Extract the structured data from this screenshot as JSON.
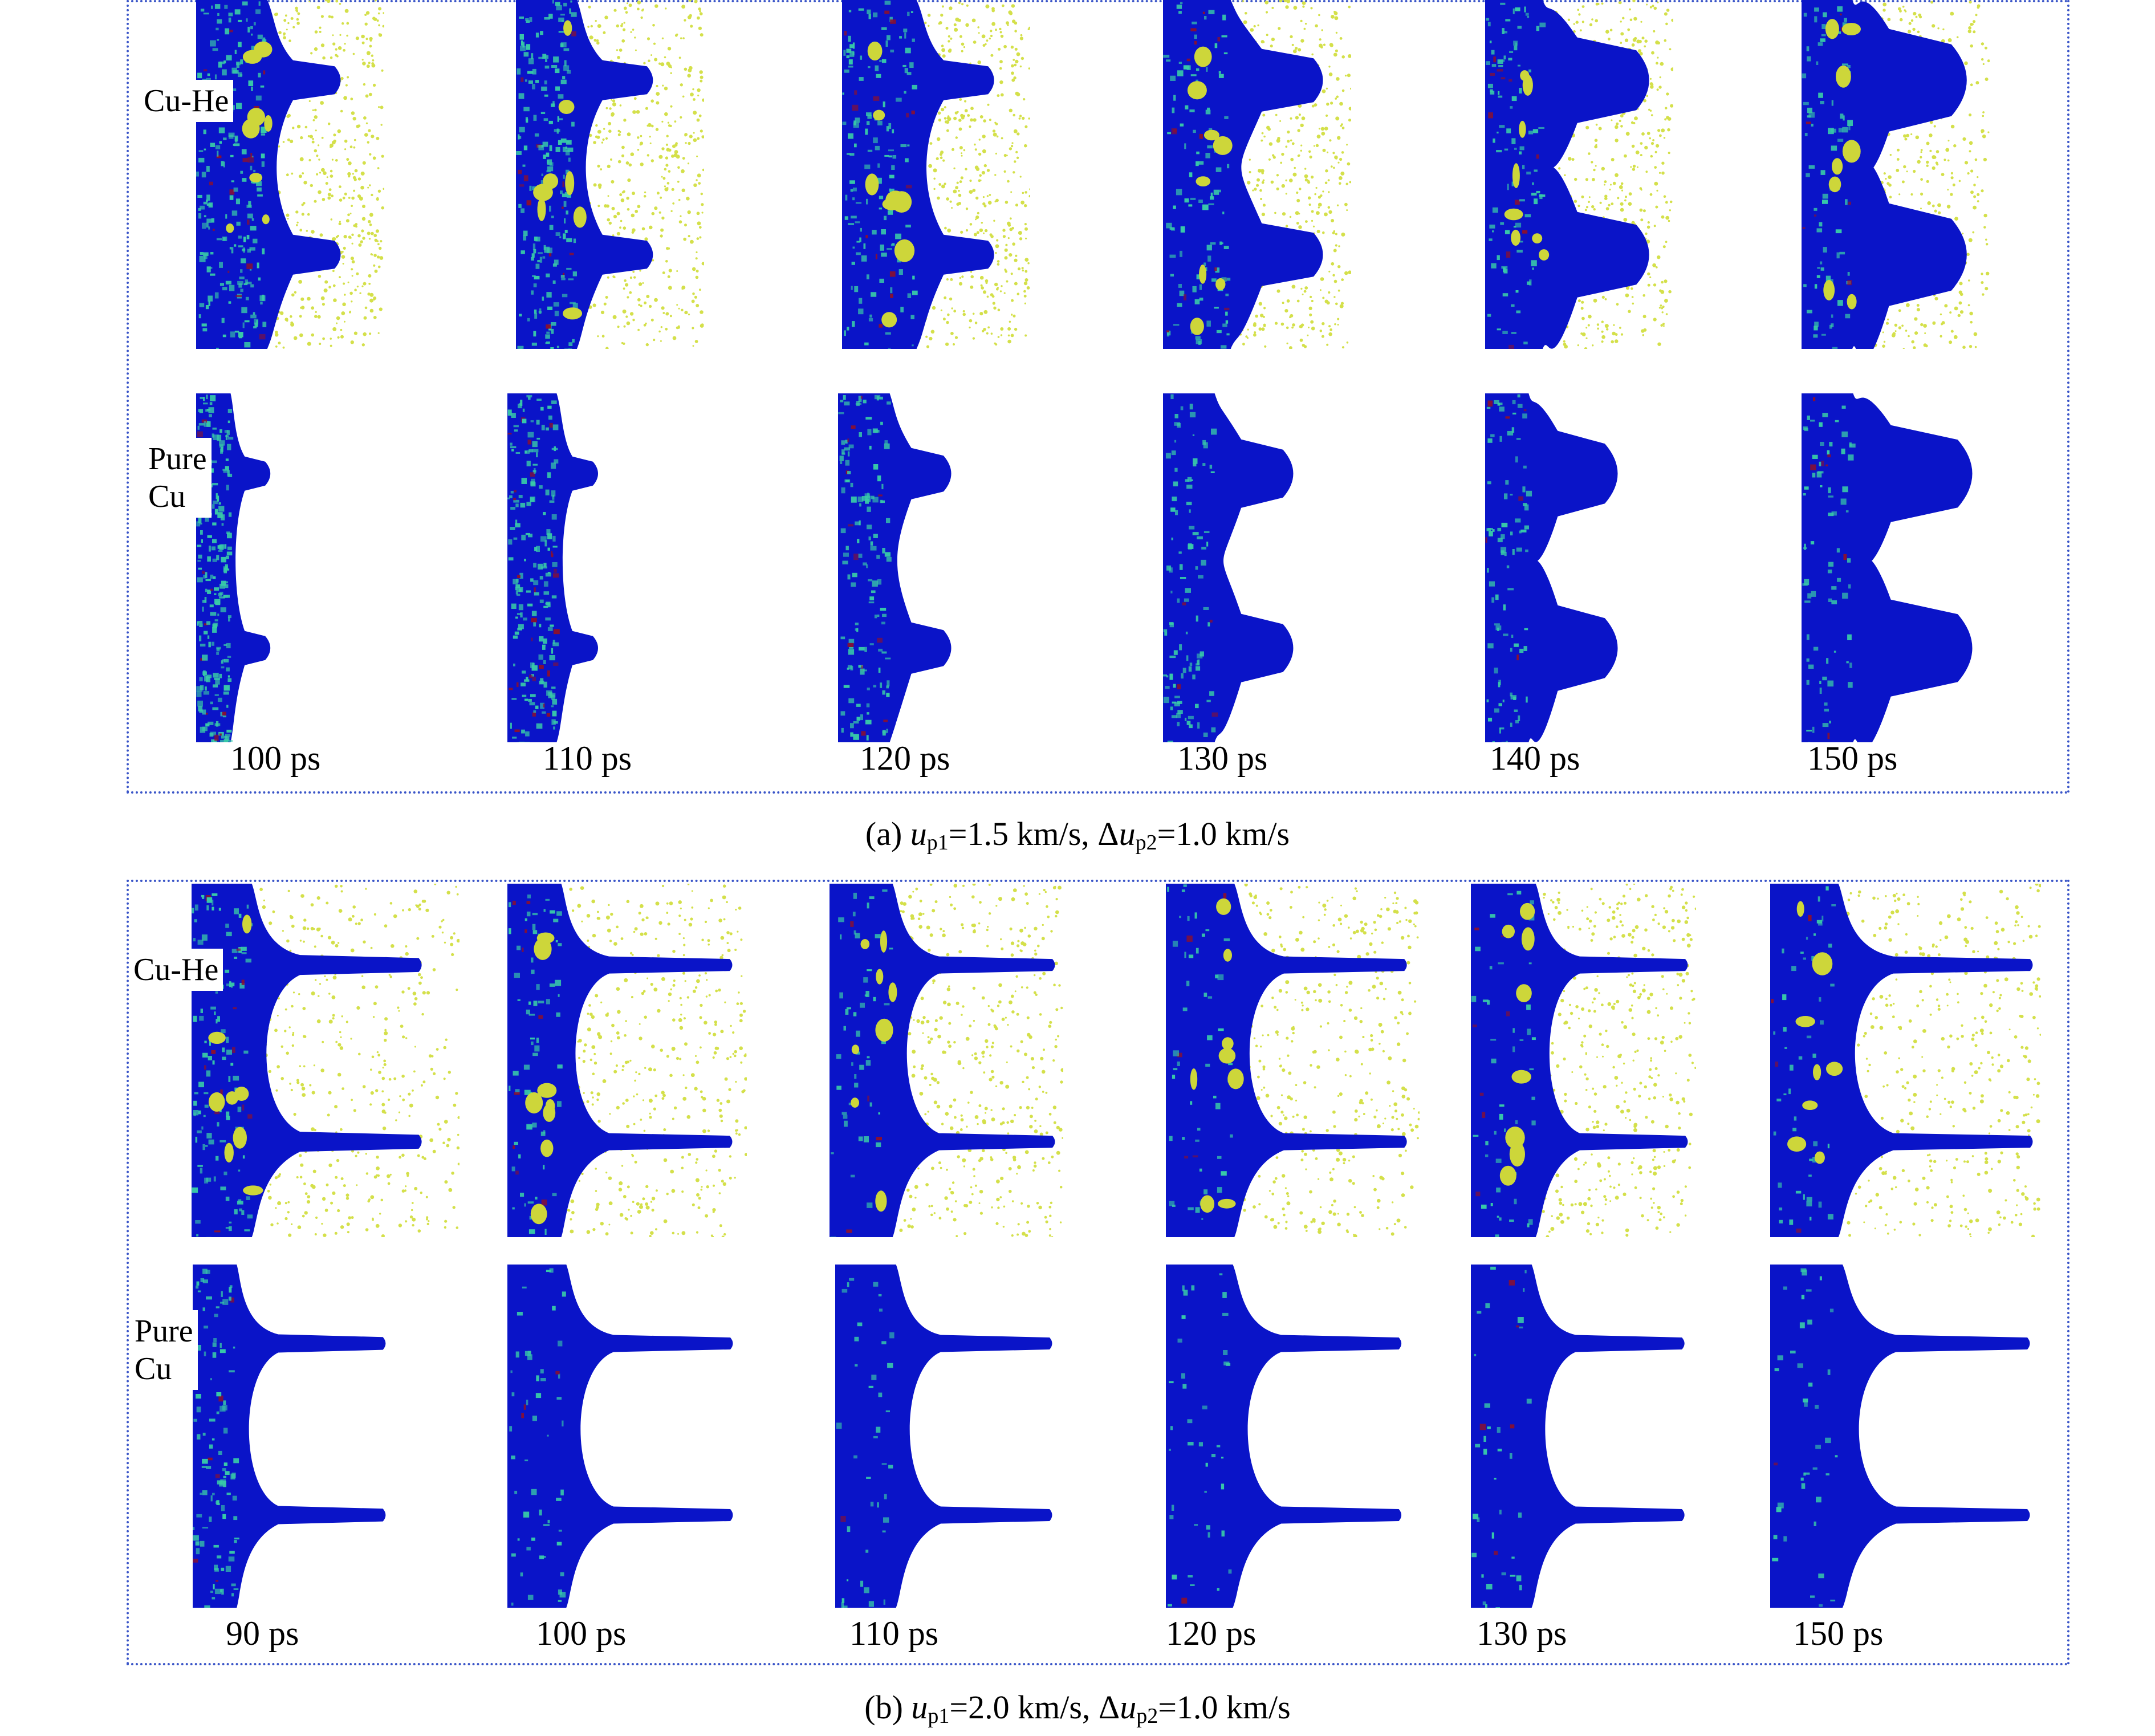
{
  "colors": {
    "box_border": "#3a55c8",
    "copper_dense": "#0a14c8",
    "copper_disordered": "#38c9a8",
    "helium": "#d4e04a",
    "bubble": "#cdd63a",
    "defect": "#8a1030"
  },
  "panel_a": {
    "caption_prefix": "(a) ",
    "caption_u": "u",
    "caption_u_sub": "p1",
    "caption_mid": "=1.5 km/s, Δ",
    "caption_du": "u",
    "caption_du_sub": "p2",
    "caption_end": "=1.0 km/s",
    "row_top_label": "Cu-He",
    "row_bottom_label_line1": "Pure",
    "row_bottom_label_line2": "Cu",
    "times": [
      "100 ps",
      "110 ps",
      "120 ps",
      "130 ps",
      "140 ps",
      "150 ps"
    ]
  },
  "panel_b": {
    "caption_prefix": "(b) ",
    "caption_u": "u",
    "caption_u_sub": "p1",
    "caption_mid": "=2.0 km/s, Δ",
    "caption_du": "u",
    "caption_du_sub": "p2",
    "caption_end": "=1.0 km/s",
    "row_top_label": "Cu-He",
    "row_bottom_label_line1": "Pure",
    "row_bottom_label_line2": "Cu",
    "times": [
      "90 ps",
      "100 ps",
      "110 ps",
      "120 ps",
      "130 ps",
      "150 ps"
    ]
  }
}
